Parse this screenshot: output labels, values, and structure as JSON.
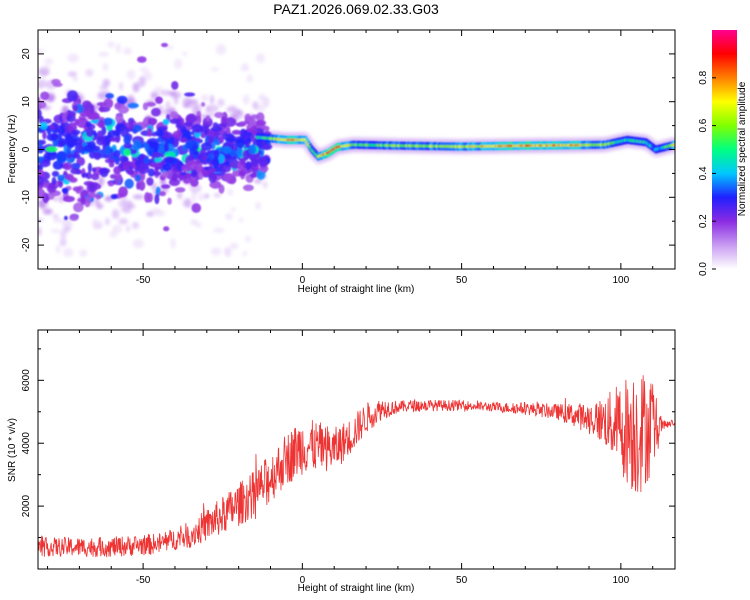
{
  "title": "PAZ1.2026.069.02.33.G03",
  "chart_data": [
    {
      "type": "heatmap",
      "xlabel": "Height of straight line (km)",
      "ylabel": "Frequency (Hz)",
      "xlim": [
        -83,
        117
      ],
      "ylim": [
        -25,
        25
      ],
      "xticks": [
        -50,
        0,
        50,
        100
      ],
      "yticks": [
        -20,
        -10,
        0,
        10,
        20
      ],
      "colorbar": {
        "label": "Normalized spectral amplitude",
        "range": [
          0,
          1
        ],
        "ticks": [
          "0.0",
          "0.2",
          "0.4",
          "0.6",
          "0.8"
        ],
        "colors": [
          "#ffffff",
          "#c89bf2",
          "#8a2be2",
          "#2020ff",
          "#00c8ff",
          "#00ff80",
          "#80ff00",
          "#ffff00",
          "#ff8000",
          "#ff0000",
          "#ff0090"
        ]
      },
      "ridge": {
        "description": "dominant frequency track",
        "x": [
          -13,
          -5,
          1,
          3,
          5,
          8,
          11,
          16,
          30,
          50,
          70,
          85,
          95,
          102,
          108,
          111,
          117
        ],
        "y": [
          2.5,
          2.0,
          2.0,
          0.0,
          -1.5,
          -0.8,
          0.5,
          1.0,
          0.8,
          0.6,
          0.8,
          0.9,
          1.0,
          2.0,
          1.5,
          0.0,
          1.0
        ],
        "amplitude": [
          0.45,
          0.75,
          0.7,
          0.5,
          0.65,
          0.8,
          0.85,
          0.55,
          0.6,
          0.65,
          0.8,
          0.75,
          0.6,
          0.45,
          0.5,
          0.35,
          0.7
        ]
      }
    },
    {
      "type": "line",
      "xlabel": "Height of straight line (km)",
      "ylabel": "SNR (10 * v/v)",
      "xlim": [
        -83,
        117
      ],
      "ylim": [
        0,
        7600
      ],
      "xticks": [
        -50,
        0,
        50,
        100
      ],
      "yticks": [
        2000,
        4000,
        6000
      ],
      "color": "#ee3333",
      "series": [
        {
          "name": "SNR",
          "envelope_x": [
            -83,
            -60,
            -45,
            -35,
            -25,
            -15,
            -10,
            -5,
            0,
            5,
            10,
            15,
            20,
            25,
            35,
            50,
            60,
            70,
            80,
            85,
            90,
            95,
            100,
            105,
            110,
            117
          ],
          "envelope_y": [
            700,
            700,
            800,
            1100,
            1700,
            2400,
            2900,
            3500,
            3900,
            3900,
            3800,
            4200,
            4800,
            5100,
            5200,
            5200,
            5150,
            5100,
            5000,
            4900,
            4800,
            4700,
            4500,
            4400,
            4500,
            4650
          ],
          "noise_amplitude_x": [
            -83,
            -40,
            -20,
            0,
            20,
            30,
            60,
            80,
            90,
            95,
            100,
            105,
            110,
            113,
            117
          ],
          "noise_amplitude_y": [
            300,
            350,
            700,
            900,
            500,
            200,
            150,
            250,
            500,
            800,
            1500,
            2200,
            1500,
            150,
            100
          ]
        }
      ]
    }
  ]
}
